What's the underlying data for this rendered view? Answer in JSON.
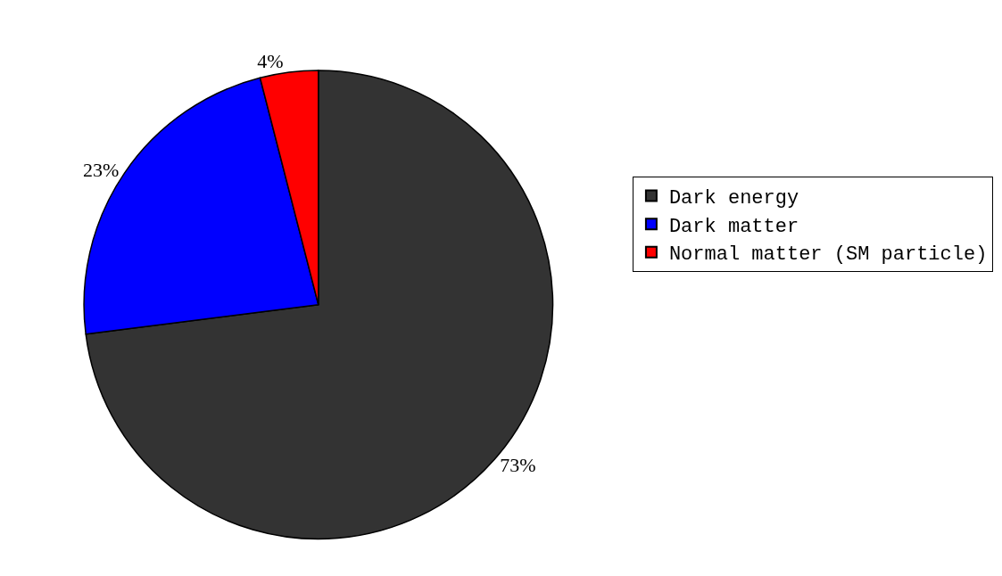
{
  "chart_data": {
    "type": "pie",
    "categories": [
      "Dark energy",
      "Dark matter",
      "Normal matter (SM particle)"
    ],
    "values": [
      73,
      23,
      4
    ],
    "value_labels": [
      "73%",
      "23%",
      "4%"
    ],
    "colors": [
      "#333333",
      "#0000ff",
      "#ff0000"
    ],
    "legend": "right"
  }
}
